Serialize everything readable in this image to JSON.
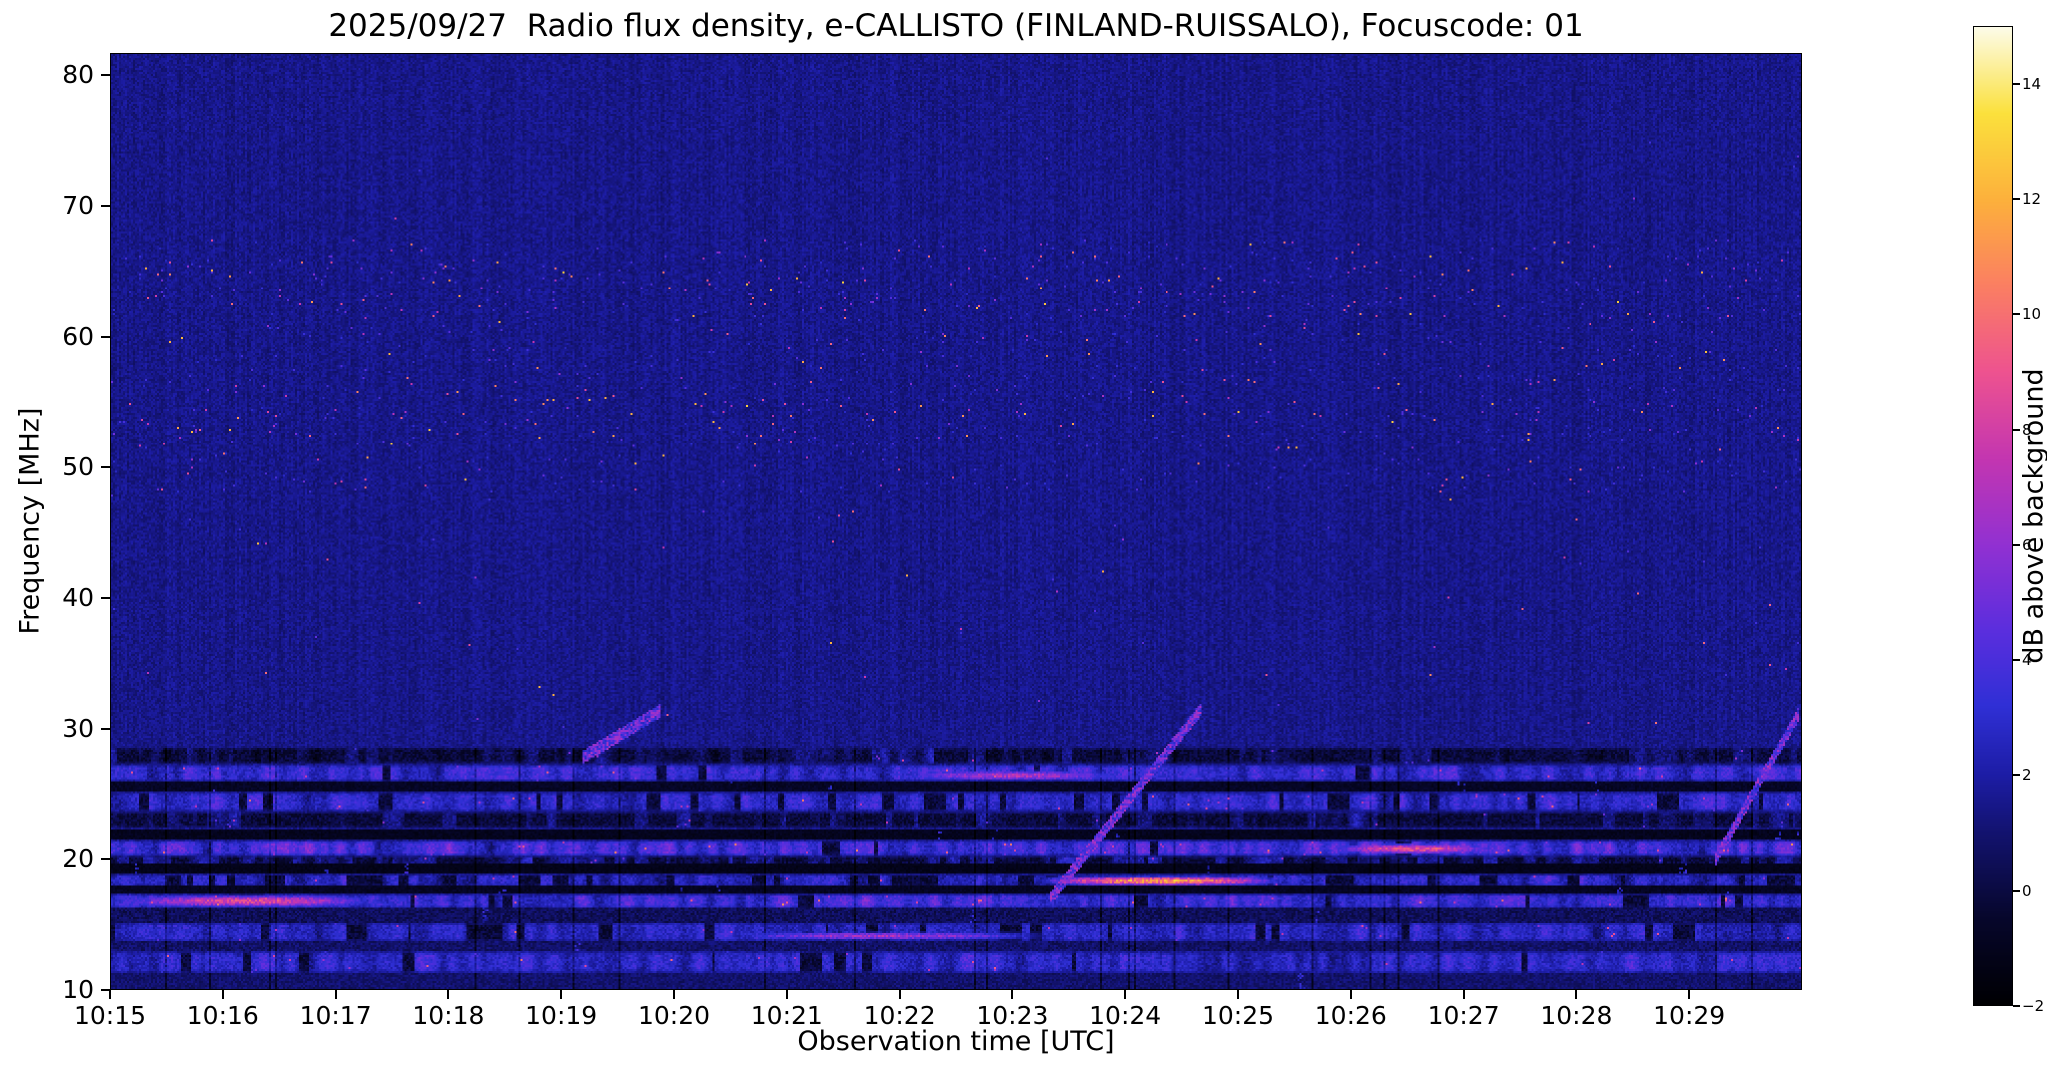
{
  "meta": {
    "date": "2025/09/27",
    "instrument": "e-CALLISTO",
    "station": "FINLAND-RUISSALO",
    "focuscode": "01"
  },
  "chart_data": {
    "type": "heatmap",
    "title": "2025/09/27  Radio flux density, e-CALLISTO (FINLAND-RUISSALO), Focuscode: 01",
    "xlabel": "Observation time [UTC]",
    "ylabel": "Frequency [MHz]",
    "colorbar_label": "dB above background",
    "x_start_utc": "10:15",
    "x_end_utc": "10:30",
    "x_duration_min": 15,
    "x_ticks": [
      "10:15",
      "10:16",
      "10:17",
      "10:18",
      "10:19",
      "10:20",
      "10:21",
      "10:22",
      "10:23",
      "10:24",
      "10:25",
      "10:26",
      "10:27",
      "10:28",
      "10:29"
    ],
    "y_ticks": [
      10,
      20,
      30,
      40,
      50,
      60,
      70,
      80
    ],
    "freq_range_mhz": [
      10,
      81.7
    ],
    "value_range_db": [
      -2,
      15
    ],
    "colorbar_ticks": [
      -2,
      0,
      2,
      4,
      6,
      8,
      10,
      12,
      14
    ],
    "background_level_db": 1.45,
    "colormap_stops": [
      {
        "v": -2.0,
        "color": "#000003"
      },
      {
        "v": -0.5,
        "color": "#07072c"
      },
      {
        "v": 1.0,
        "color": "#131370"
      },
      {
        "v": 2.0,
        "color": "#1d1da6"
      },
      {
        "v": 3.2,
        "color": "#3030d6"
      },
      {
        "v": 4.5,
        "color": "#5b2ede"
      },
      {
        "v": 6.0,
        "color": "#9231d2"
      },
      {
        "v": 7.5,
        "color": "#c436b1"
      },
      {
        "v": 9.0,
        "color": "#ee5390"
      },
      {
        "v": 10.5,
        "color": "#fb7f63"
      },
      {
        "v": 12.0,
        "color": "#fdb13c"
      },
      {
        "v": 13.5,
        "color": "#fbe13c"
      },
      {
        "v": 15.0,
        "color": "#fdfce9"
      }
    ],
    "speckle_region": {
      "freq_mhz": [
        48,
        67.5
      ],
      "dense_subbands_mhz": [
        [
          52,
          57
        ],
        [
          61.5,
          66.3
        ]
      ],
      "sparse_high_mhz": [
        67.5,
        76
      ],
      "value_db": [
        3.5,
        13
      ]
    },
    "rfi_bands": [
      {
        "range": [
          10.0,
          11.2
        ],
        "type": "dim",
        "base": 0.3,
        "var": 1.2
      },
      {
        "range": [
          11.2,
          12.9
        ],
        "type": "bright",
        "base": 2.8,
        "var": 1.5,
        "gap": 0.22
      },
      {
        "range": [
          12.9,
          13.6
        ],
        "type": "dim",
        "base": 0.1,
        "var": 1.4
      },
      {
        "range": [
          13.6,
          15.1
        ],
        "type": "bright",
        "base": 2.6,
        "var": 1.6,
        "gap": 0.28
      },
      {
        "range": [
          15.1,
          16.2
        ],
        "type": "dim",
        "base": -0.2,
        "var": 1.5
      },
      {
        "range": [
          16.2,
          17.3
        ],
        "type": "bright",
        "base": 3.4,
        "var": 2.0,
        "gap": 0.22
      },
      {
        "range": [
          17.3,
          17.9
        ],
        "type": "dark",
        "base": -1.3,
        "var": 0.9
      },
      {
        "range": [
          17.9,
          18.8
        ],
        "type": "bright",
        "base": 2.6,
        "var": 1.8,
        "gap": 0.35
      },
      {
        "range": [
          18.8,
          19.6
        ],
        "type": "dark",
        "base": -1.5,
        "var": 0.7
      },
      {
        "range": [
          19.6,
          20.2
        ],
        "type": "mixed",
        "base": 1.2,
        "var": 1.8,
        "gap": 0.5
      },
      {
        "range": [
          20.2,
          21.4
        ],
        "type": "bright",
        "base": 3.4,
        "var": 2.2,
        "gap": 0.18
      },
      {
        "range": [
          21.4,
          22.3
        ],
        "type": "dark",
        "base": -1.4,
        "var": 0.8
      },
      {
        "range": [
          22.3,
          23.6
        ],
        "type": "mixed",
        "base": 0.8,
        "var": 1.6,
        "gap": 0.55
      },
      {
        "range": [
          23.6,
          25.1
        ],
        "type": "bright",
        "base": 2.8,
        "var": 1.6,
        "gap": 0.3
      },
      {
        "range": [
          25.1,
          25.9
        ],
        "type": "dark",
        "base": -1.2,
        "var": 0.9
      },
      {
        "range": [
          25.9,
          27.2
        ],
        "type": "bright",
        "base": 3.2,
        "var": 1.8,
        "gap": 0.22
      },
      {
        "range": [
          27.2,
          28.6
        ],
        "type": "checker",
        "base": 0.6,
        "var": 2.0,
        "gap": 0.5
      }
    ],
    "features": [
      {
        "kind": "horizontal-streak",
        "freq": [
          17.9,
          18.7
        ],
        "time_min": [
          8.2,
          10.4
        ],
        "peak_db": 11.5
      },
      {
        "kind": "horizontal-streak",
        "freq": [
          13.7,
          14.4
        ],
        "time_min": [
          5.4,
          8.3
        ],
        "peak_db": 6.5
      },
      {
        "kind": "horizontal-streak",
        "freq": [
          16.2,
          17.3
        ],
        "time_min": [
          0.0,
          2.4
        ],
        "peak_db": 8.5
      },
      {
        "kind": "horizontal-streak",
        "freq": [
          20.3,
          21.2
        ],
        "time_min": [
          10.8,
          12.3
        ],
        "peak_db": 9.0
      },
      {
        "kind": "horizontal-streak",
        "freq": [
          25.9,
          26.8
        ],
        "time_min": [
          7.0,
          9.0
        ],
        "peak_db": 7.0
      },
      {
        "kind": "drift",
        "from": {
          "time_min": 4.2,
          "freq": 27.8
        },
        "to": {
          "time_min": 4.85,
          "freq": 31.3
        },
        "peak_db": 5.0
      },
      {
        "kind": "drift",
        "from": {
          "time_min": 8.35,
          "freq": 17.0
        },
        "to": {
          "time_min": 9.65,
          "freq": 31.4
        },
        "peak_db": 5.0
      },
      {
        "kind": "drift",
        "from": {
          "time_min": 14.25,
          "freq": 20.0
        },
        "to": {
          "time_min": 14.95,
          "freq": 31.0
        },
        "peak_db": 5.0
      }
    ]
  }
}
